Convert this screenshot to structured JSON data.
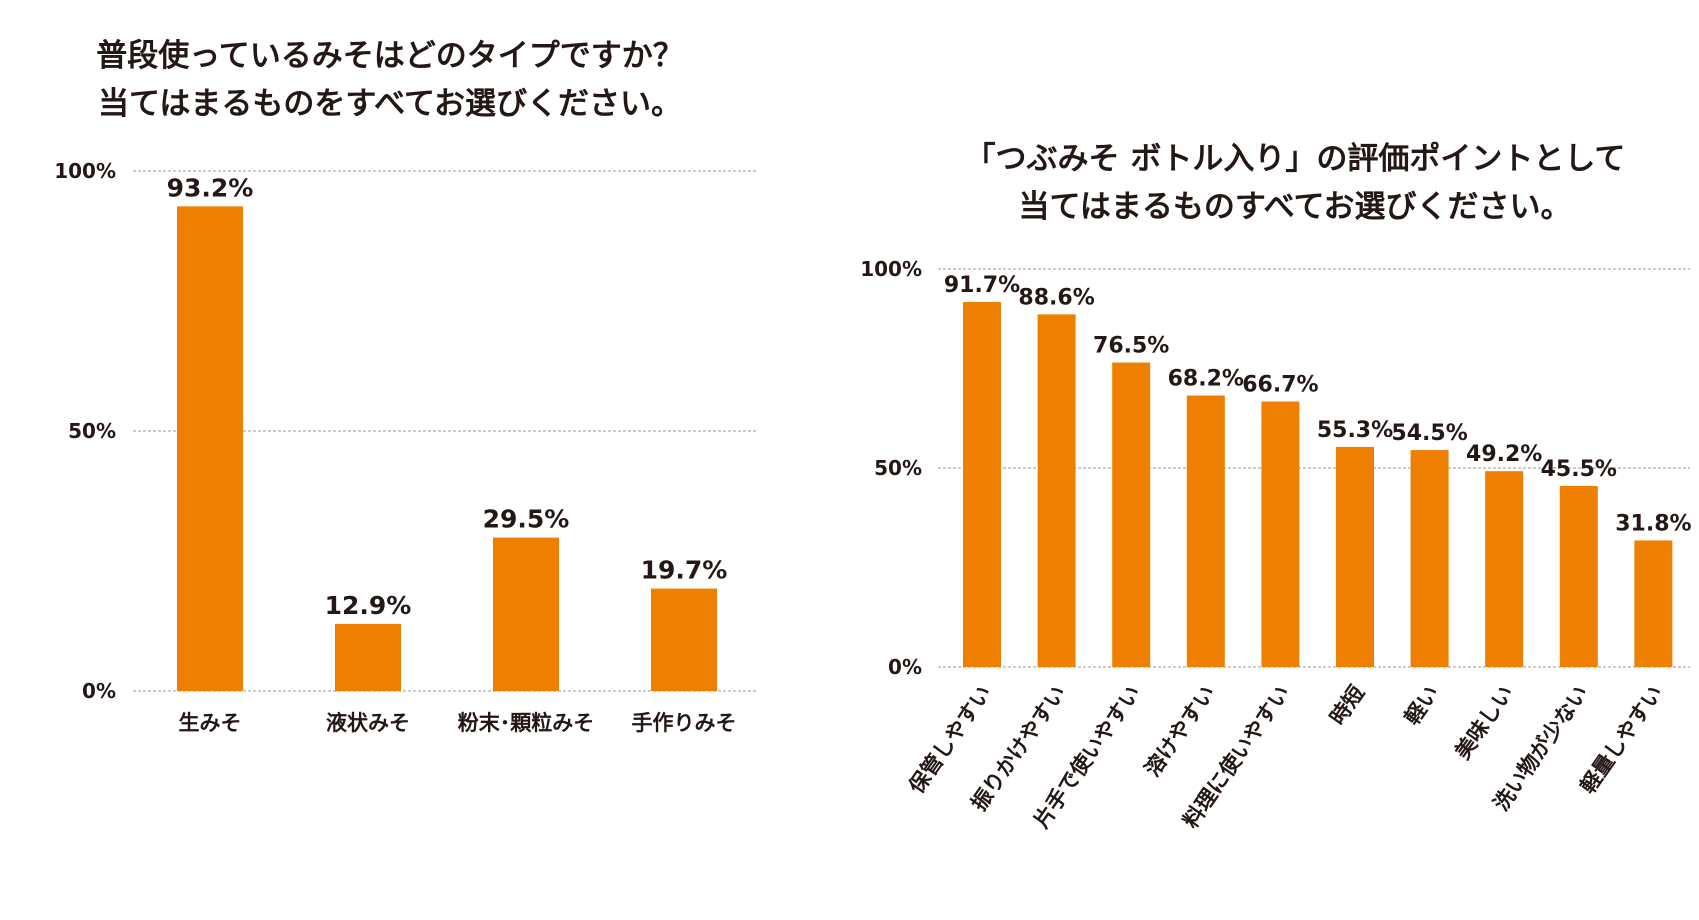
{
  "colors": {
    "bar": "#EE7F00",
    "text": "#231815",
    "grid": "#9A9A9A"
  },
  "chart_data": [
    {
      "type": "bar",
      "title": "普段使っているみそはどのタイプですか？",
      "subtitle": "当てはまるものをすべてお選びください。",
      "categories": [
        "生みそ",
        "液状みそ",
        "粉末･顆粒みそ",
        "手作りみそ"
      ],
      "values": [
        93.2,
        12.9,
        29.5,
        19.7
      ],
      "value_labels": [
        "93.2%",
        "12.9%",
        "29.5%",
        "19.7%"
      ],
      "yticks": [
        "100%",
        "50%",
        "0%"
      ],
      "ylim": [
        0,
        100
      ],
      "grid": true
    },
    {
      "type": "bar",
      "title": "「つぶみそ ボトル入り」の評価ポイントとして",
      "subtitle": "当てはまるものすべてお選びください。",
      "categories": [
        "保管しやすい",
        "振りかけやすい",
        "片手で使いやすい",
        "溶けやすい",
        "料理に使いやすい",
        "時短",
        "軽い",
        "美味しい",
        "洗い物が少ない",
        "軽量しやすい"
      ],
      "values": [
        91.7,
        88.6,
        76.5,
        68.2,
        66.7,
        55.3,
        54.5,
        49.2,
        45.5,
        31.8
      ],
      "value_labels": [
        "91.7%",
        "88.6%",
        "76.5%",
        "68.2%",
        "66.7%",
        "55.3%",
        "54.5%",
        "49.2%",
        "45.5%",
        "31.8%"
      ],
      "yticks": [
        "100%",
        "50%",
        "0%"
      ],
      "ylim": [
        0,
        100
      ],
      "grid": true
    }
  ]
}
